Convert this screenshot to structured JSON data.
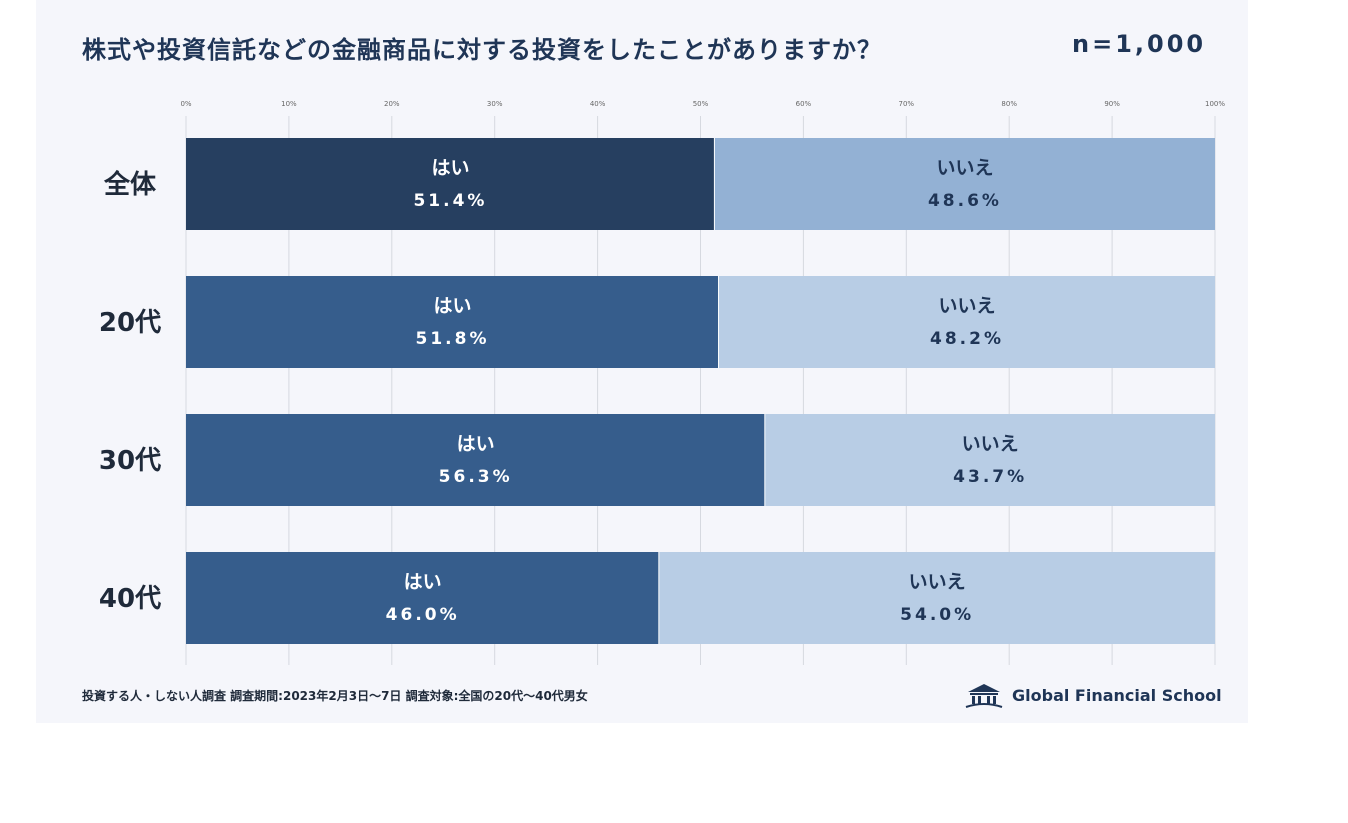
{
  "title": "株式や投資信託などの金融商品に対する投資をしたことがありますか？",
  "sample_size": "n=1,000",
  "footer": "投資する人・しない人調査  調査期間:2023年2月3日〜7日  調査対象:全国の20代〜40代男女",
  "brand": "Global Financial School",
  "colors": {
    "yes_total": "#263f60",
    "yes": "#365d8c",
    "no_total": "#93b1d4",
    "no": "#b8cde5",
    "yes_text": "#ffffff",
    "no_text": "#1f3556"
  },
  "chart_data": {
    "type": "bar",
    "orientation": "horizontal",
    "stacked": true,
    "title": "株式や投資信託などの金融商品に対する投資をしたことがありますか？",
    "xlim": [
      0,
      100
    ],
    "ticks": [
      "0%",
      "10%",
      "20%",
      "30%",
      "40%",
      "50%",
      "60%",
      "70%",
      "80%",
      "90%",
      "100%"
    ],
    "grid": true,
    "categories": [
      "全体",
      "20代",
      "30代",
      "40代"
    ],
    "series": [
      {
        "name": "はい",
        "values": [
          51.4,
          51.8,
          56.3,
          46.0
        ],
        "labels": [
          "51.4%",
          "51.8%",
          "56.3%",
          "46.0%"
        ]
      },
      {
        "name": "いいえ",
        "values": [
          48.6,
          48.2,
          43.7,
          54.0
        ],
        "labels": [
          "48.6%",
          "48.2%",
          "43.7%",
          "54.0%"
        ]
      }
    ]
  }
}
